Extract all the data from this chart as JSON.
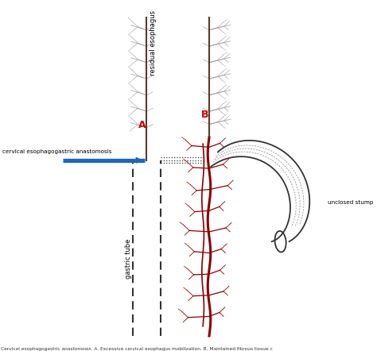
{
  "bg_color": "#ffffff",
  "esophagus_color": "#5a3a2a",
  "blood_vessel_color": "#8b0000",
  "gastric_tube_color": "#333333",
  "gray_branch_color": "#aaaaaa",
  "label_color": "#000000",
  "A_label_color": "#cc0000",
  "B_label_color": "#cc0000",
  "arrow_color": "#2266bb",
  "label_A": "A",
  "label_B": "B",
  "label_residual": "residual esophagus",
  "label_gastric": "gastric tube",
  "label_anastomosis": "cervical esophagogastric anastomosis",
  "label_stump": "unclosed stump",
  "caption": "Cervical esophagogastric anastomosis. A. Excessive cervical esophagus mobilization. B. Maintained fibrous tissue c"
}
